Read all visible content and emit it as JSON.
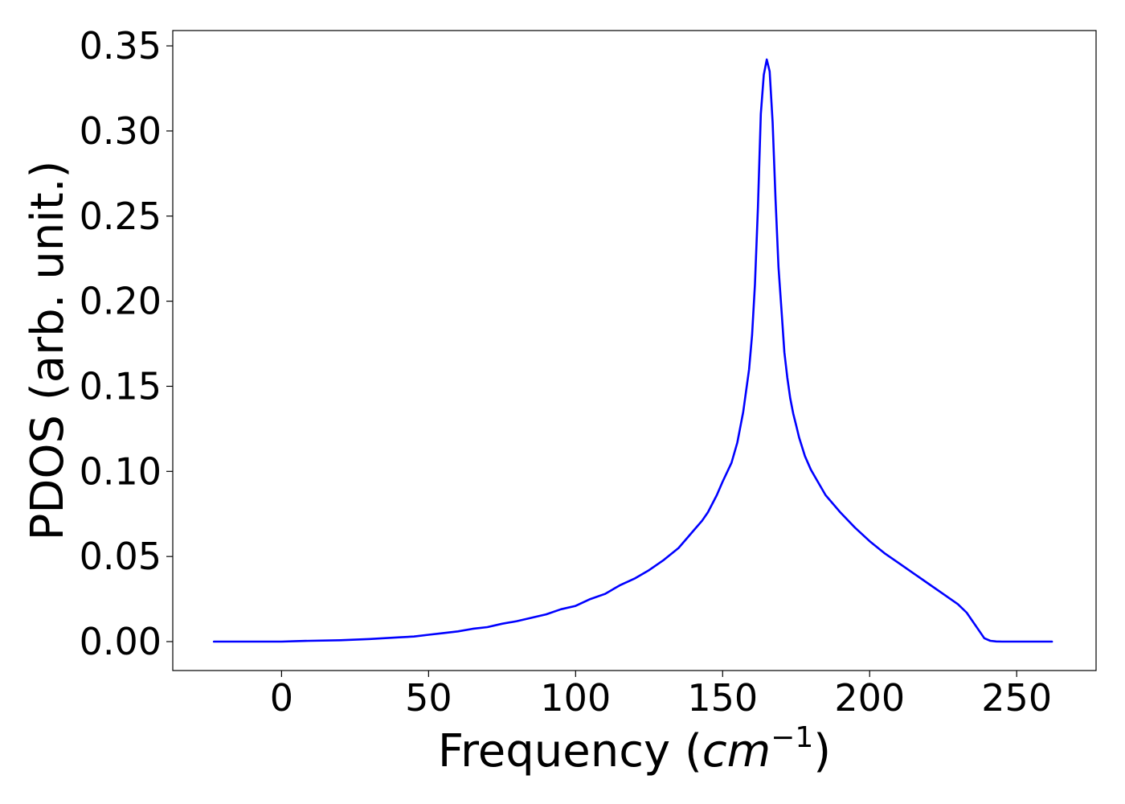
{
  "chart_data": {
    "type": "line",
    "title": "",
    "xlabel": {
      "prefix": "Frequency (",
      "unit": "cm",
      "exponent": "−1",
      "suffix": ")"
    },
    "ylabel": "PDOS (arb. unit.)",
    "xlim": [
      -37,
      277
    ],
    "ylim": [
      -0.017,
      0.359
    ],
    "xticks": [
      0,
      50,
      100,
      150,
      200,
      250
    ],
    "xtick_labels": [
      "0",
      "50",
      "100",
      "150",
      "200",
      "250"
    ],
    "yticks": [
      0.0,
      0.05,
      0.1,
      0.15,
      0.2,
      0.25,
      0.3,
      0.35
    ],
    "ytick_labels": [
      "0.00",
      "0.05",
      "0.10",
      "0.15",
      "0.20",
      "0.25",
      "0.30",
      "0.35"
    ],
    "grid": false,
    "legend": "none",
    "series": [
      {
        "color": "#0000ff",
        "x": [
          -23,
          0,
          5,
          10,
          20,
          30,
          40,
          45,
          50,
          55,
          60,
          65,
          70,
          75,
          80,
          85,
          90,
          95,
          100,
          105,
          110,
          115,
          120,
          125,
          130,
          135,
          138,
          140,
          143,
          145,
          148,
          150,
          153,
          155,
          157,
          159,
          160,
          161,
          162,
          163,
          164,
          165,
          166,
          167,
          168,
          169,
          170,
          171,
          172,
          173,
          174,
          175,
          176,
          178,
          180,
          182,
          185,
          190,
          195,
          200,
          205,
          210,
          215,
          220,
          225,
          230,
          233,
          235,
          237,
          239,
          241,
          243,
          245,
          250,
          255,
          262
        ],
        "y": [
          0.0,
          0.0,
          0.0003,
          0.0005,
          0.0008,
          0.0015,
          0.0025,
          0.003,
          0.004,
          0.005,
          0.006,
          0.0075,
          0.0085,
          0.0105,
          0.012,
          0.014,
          0.016,
          0.019,
          0.021,
          0.025,
          0.028,
          0.033,
          0.037,
          0.042,
          0.048,
          0.055,
          0.061,
          0.065,
          0.071,
          0.076,
          0.086,
          0.094,
          0.105,
          0.117,
          0.135,
          0.16,
          0.18,
          0.21,
          0.255,
          0.31,
          0.333,
          0.342,
          0.335,
          0.305,
          0.26,
          0.22,
          0.195,
          0.17,
          0.155,
          0.143,
          0.134,
          0.127,
          0.12,
          0.109,
          0.101,
          0.095,
          0.086,
          0.076,
          0.067,
          0.059,
          0.052,
          0.046,
          0.04,
          0.034,
          0.028,
          0.022,
          0.017,
          0.012,
          0.007,
          0.002,
          0.0005,
          0.0001,
          0.0,
          0.0,
          0.0,
          0.0
        ]
      }
    ]
  }
}
